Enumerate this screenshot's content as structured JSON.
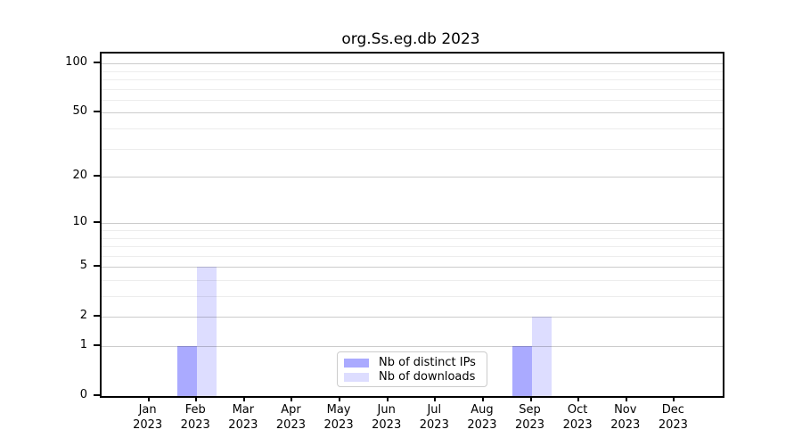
{
  "chart_data": {
    "type": "bar",
    "title": "org.Ss.eg.db 2023",
    "x_tick_months": [
      "Jan",
      "Feb",
      "Mar",
      "Apr",
      "May",
      "Jun",
      "Jul",
      "Aug",
      "Sep",
      "Oct",
      "Nov",
      "Dec"
    ],
    "x_tick_year": "2023",
    "categories": [
      "Jan 2023",
      "Feb 2023",
      "Mar 2023",
      "Apr 2023",
      "May 2023",
      "Jun 2023",
      "Jul 2023",
      "Aug 2023",
      "Sep 2023",
      "Oct 2023",
      "Nov 2023",
      "Dec 2023"
    ],
    "series": [
      {
        "name": "Nb of distinct IPs",
        "color": "#aaaaff",
        "values": [
          0,
          1,
          0,
          0,
          0,
          0,
          0,
          0,
          1,
          0,
          0,
          0
        ]
      },
      {
        "name": "Nb of downloads",
        "color": "#ddddff",
        "values": [
          0,
          5,
          0,
          0,
          0,
          0,
          0,
          0,
          2,
          0,
          0,
          0
        ]
      }
    ],
    "y_scale": "log10(1+x)",
    "y_major_ticks": [
      0,
      1,
      2,
      5,
      10,
      20,
      50,
      100
    ],
    "y_minor_gridlines": [
      3,
      4,
      6,
      7,
      8,
      9,
      30,
      40,
      60,
      70,
      80,
      90
    ],
    "ylim": [
      0,
      115
    ],
    "xlabel": "",
    "ylabel": "",
    "grid": "horizontal",
    "legend_position": "bottom-center-inside"
  }
}
